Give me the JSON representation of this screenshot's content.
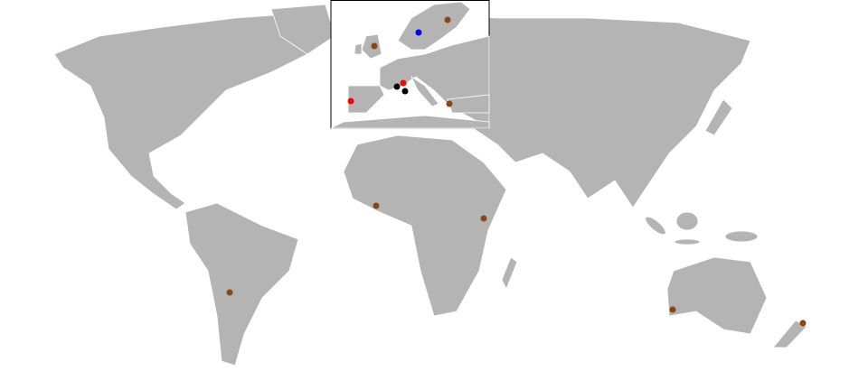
{
  "markers": [
    {
      "color": "#8b4513"
    },
    {
      "color": "#8b4513"
    },
    {
      "color": "#8b4513"
    },
    {
      "color": "#8b4513"
    },
    {
      "color": "#8b4513"
    },
    {
      "color": "#8b4513"
    },
    {
      "color": "#8b4513"
    },
    {
      "color": "#8b4513"
    },
    {
      "color": "#0000ff"
    },
    {
      "color": "#ff0000"
    },
    {
      "color": "#ff0000"
    },
    {
      "color": "#000000"
    },
    {
      "color": "#000000"
    }
  ]
}
